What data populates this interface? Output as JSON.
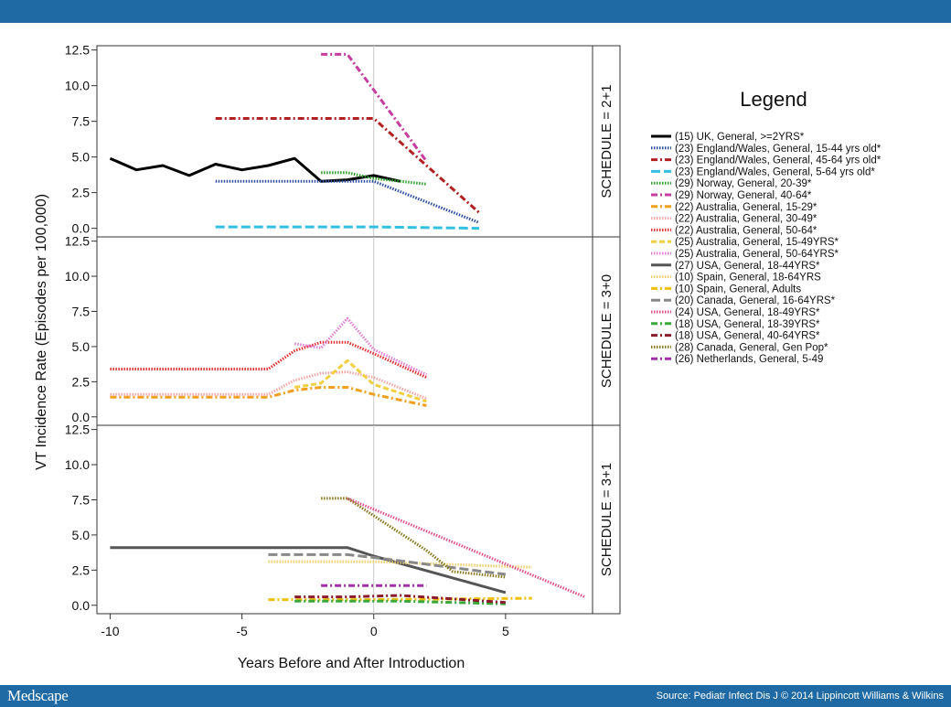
{
  "header": {},
  "footer": {
    "brand": "Medscape",
    "source": "Source: Pediatr Infect Dis J © 2014 Lippincott Williams & Wilkins"
  },
  "legend": {
    "title": "Legend"
  },
  "chart_data": {
    "type": "line",
    "xlabel": "Years Before and After Introduction",
    "ylabel": "VT Incidence Rate (Episodes per 100,000)",
    "xlim": [
      -10.5,
      8.3
    ],
    "ylim": [
      -0.6,
      12.8
    ],
    "x_ticks": [
      -10,
      -5,
      0,
      5
    ],
    "y_ticks": [
      0.0,
      2.5,
      5.0,
      7.5,
      10.0,
      12.5
    ],
    "reference_line_x": 0,
    "panels": [
      {
        "label": "SCHEDULE = 2+1"
      },
      {
        "label": "SCHEDULE = 3+0"
      },
      {
        "label": "SCHEDULE = 3+1"
      }
    ],
    "series": [
      {
        "name": "(15) UK, General, >=2YRS*",
        "color": "#000000",
        "dash": "solid",
        "panel": 0,
        "x": [
          -10,
          -9,
          -8,
          -7,
          -6,
          -5,
          -4,
          -3,
          -2,
          -1,
          0,
          1
        ],
        "y": [
          4.9,
          4.1,
          4.4,
          3.7,
          4.5,
          4.1,
          4.4,
          4.9,
          3.3,
          3.4,
          3.7,
          3.3
        ]
      },
      {
        "name": "(23) England/Wales, General, 15-44 yrs old*",
        "color": "#2e4ea0",
        "dash": "dotted",
        "panel": 0,
        "x": [
          -6,
          0,
          4
        ],
        "y": [
          3.3,
          3.3,
          0.4
        ]
      },
      {
        "name": "(23) England/Wales, General, 45-64 yrs old*",
        "color": "#b22222",
        "dash": "dashdot",
        "panel": 0,
        "x": [
          -6,
          0,
          4
        ],
        "y": [
          7.7,
          7.7,
          1.1
        ]
      },
      {
        "name": "(23) England/Wales, General, 5-64 yrs old*",
        "color": "#33c0e0",
        "dash": "longdash",
        "panel": 0,
        "x": [
          -6,
          0,
          4
        ],
        "y": [
          0.1,
          0.1,
          0.0
        ]
      },
      {
        "name": "(29) Norway, General, 20-39*",
        "color": "#2ca02c",
        "dash": "dotted",
        "panel": 0,
        "x": [
          -2,
          -1,
          0,
          2
        ],
        "y": [
          3.9,
          3.9,
          3.5,
          3.1
        ]
      },
      {
        "name": "(29) Norway, General, 40-64*",
        "color": "#c83ca0",
        "dash": "dashdot",
        "panel": 0,
        "x": [
          -2,
          -1,
          2
        ],
        "y": [
          12.2,
          12.2,
          4.7
        ]
      },
      {
        "name": "(22) Australia, General, 15-29*",
        "color": "#f0a020",
        "dash": "dashdot",
        "panel": 1,
        "x": [
          -10,
          -4,
          -3,
          -2,
          -1,
          0,
          2
        ],
        "y": [
          1.4,
          1.4,
          1.9,
          2.1,
          2.1,
          1.6,
          0.8
        ]
      },
      {
        "name": "(22) Australia, General, 30-49*",
        "color": "#f4a8a8",
        "dash": "dotted",
        "panel": 1,
        "x": [
          -10,
          -4,
          -3,
          -2,
          -1,
          0,
          2
        ],
        "y": [
          1.6,
          1.6,
          2.6,
          3.1,
          3.2,
          2.8,
          1.3
        ]
      },
      {
        "name": "(22) Australia, General, 50-64*",
        "color": "#e03030",
        "dash": "dotted",
        "panel": 1,
        "x": [
          -10,
          -4,
          -3,
          -2,
          -1,
          0,
          2
        ],
        "y": [
          3.4,
          3.4,
          4.7,
          5.3,
          5.3,
          4.5,
          2.8
        ]
      },
      {
        "name": "(25) Australia, General, 15-49YRS*",
        "color": "#f0d040",
        "dash": "dashed",
        "panel": 1,
        "x": [
          -3,
          -2,
          -1,
          0,
          2
        ],
        "y": [
          2.1,
          2.4,
          4.0,
          2.3,
          1.1
        ]
      },
      {
        "name": "(25) Australia, General, 50-64YRS*",
        "color": "#e080d8",
        "dash": "dotted",
        "panel": 1,
        "x": [
          -3,
          -2,
          -1,
          0,
          2
        ],
        "y": [
          5.2,
          4.9,
          7.0,
          4.8,
          3.0
        ]
      },
      {
        "name": "(27) USA, General, 18-44YRS*",
        "color": "#555555",
        "dash": "solid",
        "panel": 2,
        "x": [
          -10,
          -1,
          0,
          5
        ],
        "y": [
          4.1,
          4.1,
          3.5,
          0.9
        ]
      },
      {
        "name": "(10) Spain, General, 18-64YRS",
        "color": "#f0d070",
        "dash": "dotted",
        "panel": 2,
        "x": [
          -4,
          0,
          6
        ],
        "y": [
          3.1,
          3.1,
          2.7
        ]
      },
      {
        "name": "(10) Spain, General, Adults",
        "color": "#f0c010",
        "dash": "dashdot",
        "panel": 2,
        "x": [
          -4,
          0,
          6
        ],
        "y": [
          0.4,
          0.4,
          0.5
        ]
      },
      {
        "name": "(20) Canada, General, 16-64YRS*",
        "color": "#888888",
        "dash": "longdash",
        "panel": 2,
        "x": [
          -4,
          -1,
          0,
          5
        ],
        "y": [
          3.6,
          3.6,
          3.4,
          2.2
        ]
      },
      {
        "name": "(24) USA, General, 18-49YRS*",
        "color": "#e0508a",
        "dash": "dotted",
        "panel": 2,
        "x": [
          -1,
          8
        ],
        "y": [
          7.6,
          0.6
        ]
      },
      {
        "name": "(18) USA, General, 18-39YRS*",
        "color": "#3aa83a",
        "dash": "dashdot",
        "panel": 2,
        "x": [
          -3,
          -1,
          1,
          5
        ],
        "y": [
          0.3,
          0.3,
          0.3,
          0.1
        ]
      },
      {
        "name": "(18) USA, General, 40-64YRS*",
        "color": "#8a1c2c",
        "dash": "dashdot",
        "panel": 2,
        "x": [
          -3,
          -1,
          1,
          5
        ],
        "y": [
          0.6,
          0.6,
          0.7,
          0.2
        ]
      },
      {
        "name": "(28) Canada, General, Gen Pop*",
        "color": "#8a7a20",
        "dash": "dotted",
        "panel": 2,
        "x": [
          -2,
          -1,
          2,
          3,
          5
        ],
        "y": [
          7.6,
          7.6,
          3.9,
          2.4,
          2.0
        ]
      },
      {
        "name": "(26) Netherlands, General, 5-49",
        "color": "#a030a8",
        "dash": "dashdot",
        "panel": 2,
        "x": [
          -2,
          2
        ],
        "y": [
          1.4,
          1.4
        ]
      }
    ]
  }
}
